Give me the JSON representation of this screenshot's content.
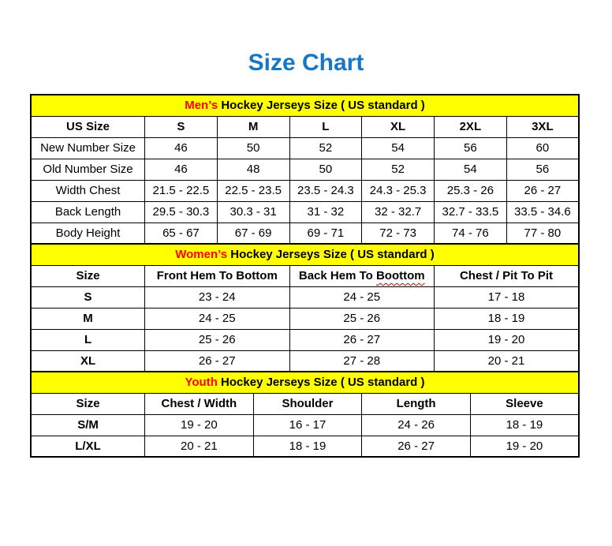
{
  "title": "Size Chart",
  "colors": {
    "title": "#1777c6",
    "banner-bg": "#ffff00",
    "highlight": "#ff0000",
    "border": "#000000",
    "squiggle": "#c00000",
    "text": "#000000"
  },
  "sections": [
    {
      "banner": {
        "highlight": "Men’s",
        "rest": " Hockey Jerseys Size ( US standard )"
      },
      "columns": [
        "US Size",
        "S",
        "M",
        "L",
        "XL",
        "2XL",
        "3XL"
      ],
      "rows": [
        [
          "New Number Size",
          "46",
          "50",
          "52",
          "54",
          "56",
          "60"
        ],
        [
          "Old Number Size",
          "46",
          "48",
          "50",
          "52",
          "54",
          "56"
        ],
        [
          "Width Chest",
          "21.5 - 22.5",
          "22.5 - 23.5",
          "23.5 - 24.3",
          "24.3 - 25.3",
          "25.3 - 26",
          "26 - 27"
        ],
        [
          "Back Length",
          "29.5 - 30.3",
          "30.3 - 31",
          "31 - 32",
          "32 - 32.7",
          "32.7 - 33.5",
          "33.5 - 34.6"
        ],
        [
          "Body Height",
          "65 - 67",
          "67 - 69",
          "69 - 71",
          "72 - 73",
          "74 - 76",
          "77 - 80"
        ]
      ]
    },
    {
      "banner": {
        "highlight": "Women’s",
        "rest": " Hockey Jerseys Size ( US standard )"
      },
      "columns": [
        "Size",
        "Front Hem To Bottom",
        {
          "parts": [
            {
              "text": "Back Hem To "
            },
            {
              "text": "Boottom",
              "squiggle": true
            }
          ]
        },
        "Chest / Pit To Pit"
      ],
      "rows": [
        [
          "S",
          "23 - 24",
          "24 - 25",
          "17 - 18"
        ],
        [
          "M",
          "24 - 25",
          "25 - 26",
          "18 - 19"
        ],
        [
          "L",
          "25 - 26",
          "26 - 27",
          "19 - 20"
        ],
        [
          "XL",
          "26 - 27",
          "27 - 28",
          "20 - 21"
        ]
      ]
    },
    {
      "banner": {
        "highlight": "Youth",
        "rest": " Hockey Jerseys Size ( US standard )"
      },
      "columns": [
        "Size",
        "Chest / Width",
        "Shoulder",
        "Length",
        "Sleeve"
      ],
      "rows": [
        [
          "S/M",
          "19 - 20",
          "16 - 17",
          "24 - 26",
          "18 - 19"
        ],
        [
          "L/XL",
          "20 - 21",
          "18 - 19",
          "26 - 27",
          "19 - 20"
        ]
      ]
    }
  ]
}
